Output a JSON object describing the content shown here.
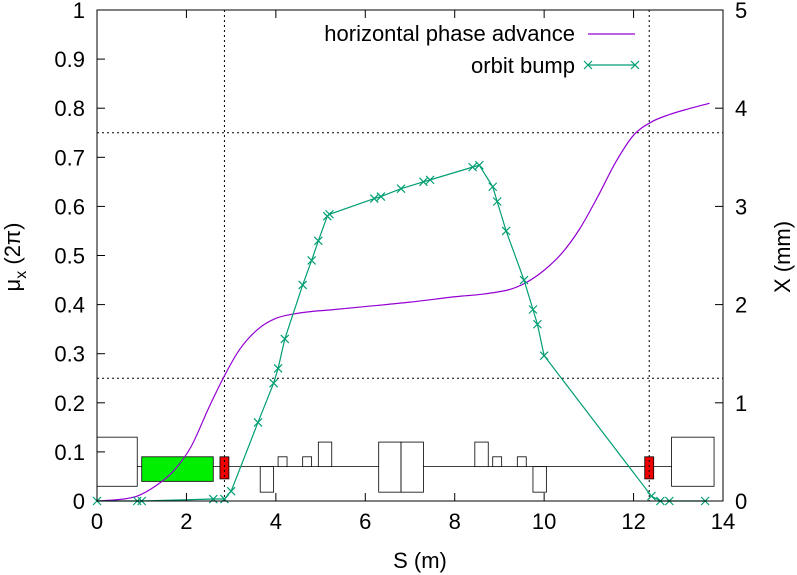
{
  "chart_data": {
    "type": "line",
    "xlabel": "S (m)",
    "ylabel": "μ_x (2π)",
    "y2label": "X (mm)",
    "xlim": [
      0,
      14
    ],
    "ylim": [
      0,
      1
    ],
    "y2lim": [
      0,
      5
    ],
    "x_ticks": [
      "0",
      "2",
      "4",
      "6",
      "8",
      "10",
      "12",
      "14"
    ],
    "y_ticks": [
      "0",
      "0.1",
      "0.2",
      "0.3",
      "0.4",
      "0.5",
      "0.6",
      "0.7",
      "0.8",
      "0.9",
      "1"
    ],
    "y2_ticks": [
      "0",
      "1",
      "2",
      "3",
      "4",
      "5"
    ],
    "grid": false,
    "legend_position": "top-right",
    "reference_lines": {
      "horizontal": [
        0.25,
        0.75
      ],
      "vertical": [
        2.85,
        12.35
      ]
    },
    "series": [
      {
        "name": "horizontal phase advance",
        "axis": "left",
        "color": "#9400D3",
        "marker": "none",
        "x": [
          0,
          0.5,
          0.9,
          1.3,
          1.7,
          2.1,
          2.5,
          2.85,
          3.2,
          3.6,
          4.0,
          4.4,
          4.8,
          5.2,
          6.0,
          7.0,
          8.0,
          8.6,
          9.2,
          9.6,
          10.0,
          10.4,
          10.8,
          11.2,
          11.6,
          12.0,
          12.4,
          12.8,
          13.2,
          13.7
        ],
        "y": [
          0,
          0.003,
          0.01,
          0.03,
          0.06,
          0.11,
          0.19,
          0.255,
          0.31,
          0.35,
          0.372,
          0.381,
          0.386,
          0.389,
          0.396,
          0.405,
          0.416,
          0.421,
          0.43,
          0.445,
          0.47,
          0.505,
          0.555,
          0.62,
          0.69,
          0.745,
          0.772,
          0.787,
          0.798,
          0.81
        ]
      },
      {
        "name": "orbit bump",
        "axis": "right",
        "color": "#009E73",
        "marker": "x",
        "x": [
          0,
          0.9,
          1.0,
          2.6,
          2.85,
          3.0,
          3.6,
          3.95,
          4.05,
          4.2,
          4.6,
          4.8,
          4.95,
          5.15,
          5.2,
          6.2,
          6.35,
          6.8,
          7.3,
          7.45,
          8.4,
          8.55,
          8.85,
          8.95,
          9.15,
          9.55,
          9.75,
          9.85,
          10.0,
          12.4,
          12.6,
          12.8,
          13.6
        ],
        "y": [
          0,
          0,
          0,
          0.02,
          0.02,
          0.1,
          0.8,
          1.2,
          1.35,
          1.65,
          2.2,
          2.45,
          2.65,
          2.9,
          2.92,
          3.08,
          3.1,
          3.18,
          3.25,
          3.27,
          3.4,
          3.42,
          3.2,
          3.05,
          2.75,
          2.25,
          1.95,
          1.8,
          1.48,
          0.05,
          0,
          0,
          0
        ]
      }
    ],
    "lattice_elements": [
      {
        "kind": "box",
        "x0": 0.0,
        "x1": 0.9,
        "y0": 0.03,
        "y1": 0.13,
        "fill": "#ffffff"
      },
      {
        "kind": "box",
        "x0": 1.0,
        "x1": 2.6,
        "y0": 0.04,
        "y1": 0.09,
        "fill": "#00EE00"
      },
      {
        "kind": "box",
        "x0": 2.75,
        "x1": 2.95,
        "y0": 0.045,
        "y1": 0.09,
        "fill": "#EE0000"
      },
      {
        "kind": "box",
        "x0": 3.65,
        "x1": 3.95,
        "y0": 0.018,
        "y1": 0.07,
        "fill": "#ffffff"
      },
      {
        "kind": "box",
        "x0": 4.05,
        "x1": 4.25,
        "y0": 0.07,
        "y1": 0.09,
        "fill": "#ffffff"
      },
      {
        "kind": "box",
        "x0": 4.6,
        "x1": 4.8,
        "y0": 0.07,
        "y1": 0.09,
        "fill": "#ffffff"
      },
      {
        "kind": "box",
        "x0": 4.95,
        "x1": 5.25,
        "y0": 0.07,
        "y1": 0.12,
        "fill": "#ffffff"
      },
      {
        "kind": "box",
        "x0": 6.3,
        "x1": 6.8,
        "y0": 0.018,
        "y1": 0.12,
        "fill": "#ffffff"
      },
      {
        "kind": "box",
        "x0": 6.8,
        "x1": 7.3,
        "y0": 0.018,
        "y1": 0.12,
        "fill": "#ffffff"
      },
      {
        "kind": "box",
        "x0": 8.45,
        "x1": 8.75,
        "y0": 0.07,
        "y1": 0.12,
        "fill": "#ffffff"
      },
      {
        "kind": "box",
        "x0": 8.85,
        "x1": 9.05,
        "y0": 0.07,
        "y1": 0.09,
        "fill": "#ffffff"
      },
      {
        "kind": "box",
        "x0": 9.4,
        "x1": 9.6,
        "y0": 0.07,
        "y1": 0.09,
        "fill": "#ffffff"
      },
      {
        "kind": "box",
        "x0": 9.75,
        "x1": 10.05,
        "y0": 0.018,
        "y1": 0.07,
        "fill": "#ffffff"
      },
      {
        "kind": "box",
        "x0": 12.25,
        "x1": 12.45,
        "y0": 0.045,
        "y1": 0.09,
        "fill": "#EE0000"
      },
      {
        "kind": "box",
        "x0": 12.85,
        "x1": 13.8,
        "y0": 0.03,
        "y1": 0.13,
        "fill": "#ffffff"
      }
    ],
    "beamline": {
      "x0": 0.9,
      "x1": 12.85,
      "y": 0.07
    }
  }
}
